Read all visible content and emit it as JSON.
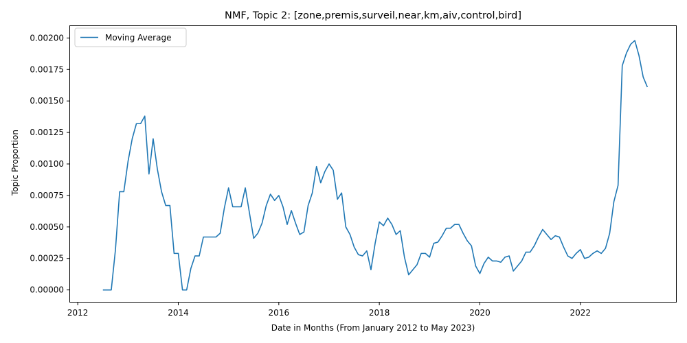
{
  "chart_data": {
    "type": "line",
    "title": "NMF, Topic 2: [zone,premis,surveil,near,km,aiv,control,bird]",
    "xlabel": "Date in Months (From January 2012 to May 2023)",
    "ylabel": "Topic Proportion",
    "xlim": [
      "2011-11",
      "2023-12"
    ],
    "ylim": [
      -0.0001,
      0.0021
    ],
    "x_ticks": [
      {
        "value": "2012-01",
        "label": "2012"
      },
      {
        "value": "2014-01",
        "label": "2014"
      },
      {
        "value": "2016-01",
        "label": "2016"
      },
      {
        "value": "2018-01",
        "label": "2018"
      },
      {
        "value": "2020-01",
        "label": "2020"
      },
      {
        "value": "2022-01",
        "label": "2022"
      }
    ],
    "y_ticks": [
      "0.00000",
      "0.00025",
      "0.00050",
      "0.00075",
      "0.00100",
      "0.00125",
      "0.00150",
      "0.00175",
      "0.00200"
    ],
    "grid": false,
    "legend": {
      "position": "top-left"
    },
    "color": "#1f77b4",
    "series": [
      {
        "name": "Moving Average",
        "points": [
          [
            "2012-07",
            0.0
          ],
          [
            "2012-08",
            0.0
          ],
          [
            "2012-09",
            0.0
          ],
          [
            "2012-10",
            0.00032
          ],
          [
            "2012-11",
            0.00078
          ],
          [
            "2012-12",
            0.00078
          ],
          [
            "2013-01",
            0.00102
          ],
          [
            "2013-02",
            0.0012
          ],
          [
            "2013-03",
            0.00132
          ],
          [
            "2013-04",
            0.00132
          ],
          [
            "2013-05",
            0.00138
          ],
          [
            "2013-06",
            0.00092
          ],
          [
            "2013-07",
            0.0012
          ],
          [
            "2013-08",
            0.00096
          ],
          [
            "2013-09",
            0.00078
          ],
          [
            "2013-10",
            0.00067
          ],
          [
            "2013-11",
            0.00067
          ],
          [
            "2013-12",
            0.00029
          ],
          [
            "2014-01",
            0.00029
          ],
          [
            "2014-02",
            0.0
          ],
          [
            "2014-03",
            0.0
          ],
          [
            "2014-04",
            0.00017
          ],
          [
            "2014-05",
            0.00027
          ],
          [
            "2014-06",
            0.00027
          ],
          [
            "2014-07",
            0.00042
          ],
          [
            "2014-08",
            0.00042
          ],
          [
            "2014-09",
            0.00042
          ],
          [
            "2014-10",
            0.00042
          ],
          [
            "2014-11",
            0.00045
          ],
          [
            "2014-12",
            0.00065
          ],
          [
            "2015-01",
            0.00081
          ],
          [
            "2015-02",
            0.00066
          ],
          [
            "2015-03",
            0.00066
          ],
          [
            "2015-04",
            0.00066
          ],
          [
            "2015-05",
            0.00081
          ],
          [
            "2015-06",
            0.00061
          ],
          [
            "2015-07",
            0.00041
          ],
          [
            "2015-08",
            0.00045
          ],
          [
            "2015-09",
            0.00053
          ],
          [
            "2015-10",
            0.00067
          ],
          [
            "2015-11",
            0.00076
          ],
          [
            "2015-12",
            0.00071
          ],
          [
            "2016-01",
            0.00075
          ],
          [
            "2016-02",
            0.00066
          ],
          [
            "2016-03",
            0.00052
          ],
          [
            "2016-04",
            0.00063
          ],
          [
            "2016-05",
            0.00053
          ],
          [
            "2016-06",
            0.00044
          ],
          [
            "2016-07",
            0.00046
          ],
          [
            "2016-08",
            0.00067
          ],
          [
            "2016-09",
            0.00077
          ],
          [
            "2016-10",
            0.00098
          ],
          [
            "2016-11",
            0.00085
          ],
          [
            "2016-12",
            0.00094
          ],
          [
            "2017-01",
            0.001
          ],
          [
            "2017-02",
            0.00095
          ],
          [
            "2017-03",
            0.00072
          ],
          [
            "2017-04",
            0.00077
          ],
          [
            "2017-05",
            0.0005
          ],
          [
            "2017-06",
            0.00044
          ],
          [
            "2017-07",
            0.00034
          ],
          [
            "2017-08",
            0.00028
          ],
          [
            "2017-09",
            0.00027
          ],
          [
            "2017-10",
            0.00031
          ],
          [
            "2017-11",
            0.00016
          ],
          [
            "2017-12",
            0.00037
          ],
          [
            "2018-01",
            0.00054
          ],
          [
            "2018-02",
            0.00051
          ],
          [
            "2018-03",
            0.00057
          ],
          [
            "2018-04",
            0.00052
          ],
          [
            "2018-05",
            0.00044
          ],
          [
            "2018-06",
            0.00047
          ],
          [
            "2018-07",
            0.00026
          ],
          [
            "2018-08",
            0.00012
          ],
          [
            "2018-09",
            0.00016
          ],
          [
            "2018-10",
            0.0002
          ],
          [
            "2018-11",
            0.00029
          ],
          [
            "2018-12",
            0.00029
          ],
          [
            "2019-01",
            0.00026
          ],
          [
            "2019-02",
            0.00037
          ],
          [
            "2019-03",
            0.00038
          ],
          [
            "2019-04",
            0.00043
          ],
          [
            "2019-05",
            0.00049
          ],
          [
            "2019-06",
            0.00049
          ],
          [
            "2019-07",
            0.00052
          ],
          [
            "2019-08",
            0.00052
          ],
          [
            "2019-09",
            0.00045
          ],
          [
            "2019-10",
            0.00039
          ],
          [
            "2019-11",
            0.00035
          ],
          [
            "2019-12",
            0.00019
          ],
          [
            "2020-01",
            0.00013
          ],
          [
            "2020-02",
            0.00021
          ],
          [
            "2020-03",
            0.00026
          ],
          [
            "2020-04",
            0.00023
          ],
          [
            "2020-05",
            0.00023
          ],
          [
            "2020-06",
            0.00022
          ],
          [
            "2020-07",
            0.00026
          ],
          [
            "2020-08",
            0.00027
          ],
          [
            "2020-09",
            0.00015
          ],
          [
            "2020-10",
            0.00019
          ],
          [
            "2020-11",
            0.00023
          ],
          [
            "2020-12",
            0.0003
          ],
          [
            "2021-01",
            0.0003
          ],
          [
            "2021-02",
            0.00035
          ],
          [
            "2021-03",
            0.00042
          ],
          [
            "2021-04",
            0.00048
          ],
          [
            "2021-05",
            0.00044
          ],
          [
            "2021-06",
            0.0004
          ],
          [
            "2021-07",
            0.00043
          ],
          [
            "2021-08",
            0.00042
          ],
          [
            "2021-09",
            0.00034
          ],
          [
            "2021-10",
            0.00027
          ],
          [
            "2021-11",
            0.00025
          ],
          [
            "2021-12",
            0.00029
          ],
          [
            "2022-01",
            0.00032
          ],
          [
            "2022-02",
            0.00025
          ],
          [
            "2022-03",
            0.00026
          ],
          [
            "2022-04",
            0.00029
          ],
          [
            "2022-05",
            0.00031
          ],
          [
            "2022-06",
            0.00029
          ],
          [
            "2022-07",
            0.00033
          ],
          [
            "2022-08",
            0.00045
          ],
          [
            "2022-09",
            0.0007
          ],
          [
            "2022-10",
            0.00083
          ],
          [
            "2022-11",
            0.00178
          ],
          [
            "2022-12",
            0.00188
          ],
          [
            "2023-01",
            0.00195
          ],
          [
            "2023-02",
            0.00198
          ],
          [
            "2023-03",
            0.00186
          ],
          [
            "2023-04",
            0.00169
          ],
          [
            "2023-05",
            0.00161
          ]
        ]
      }
    ]
  }
}
